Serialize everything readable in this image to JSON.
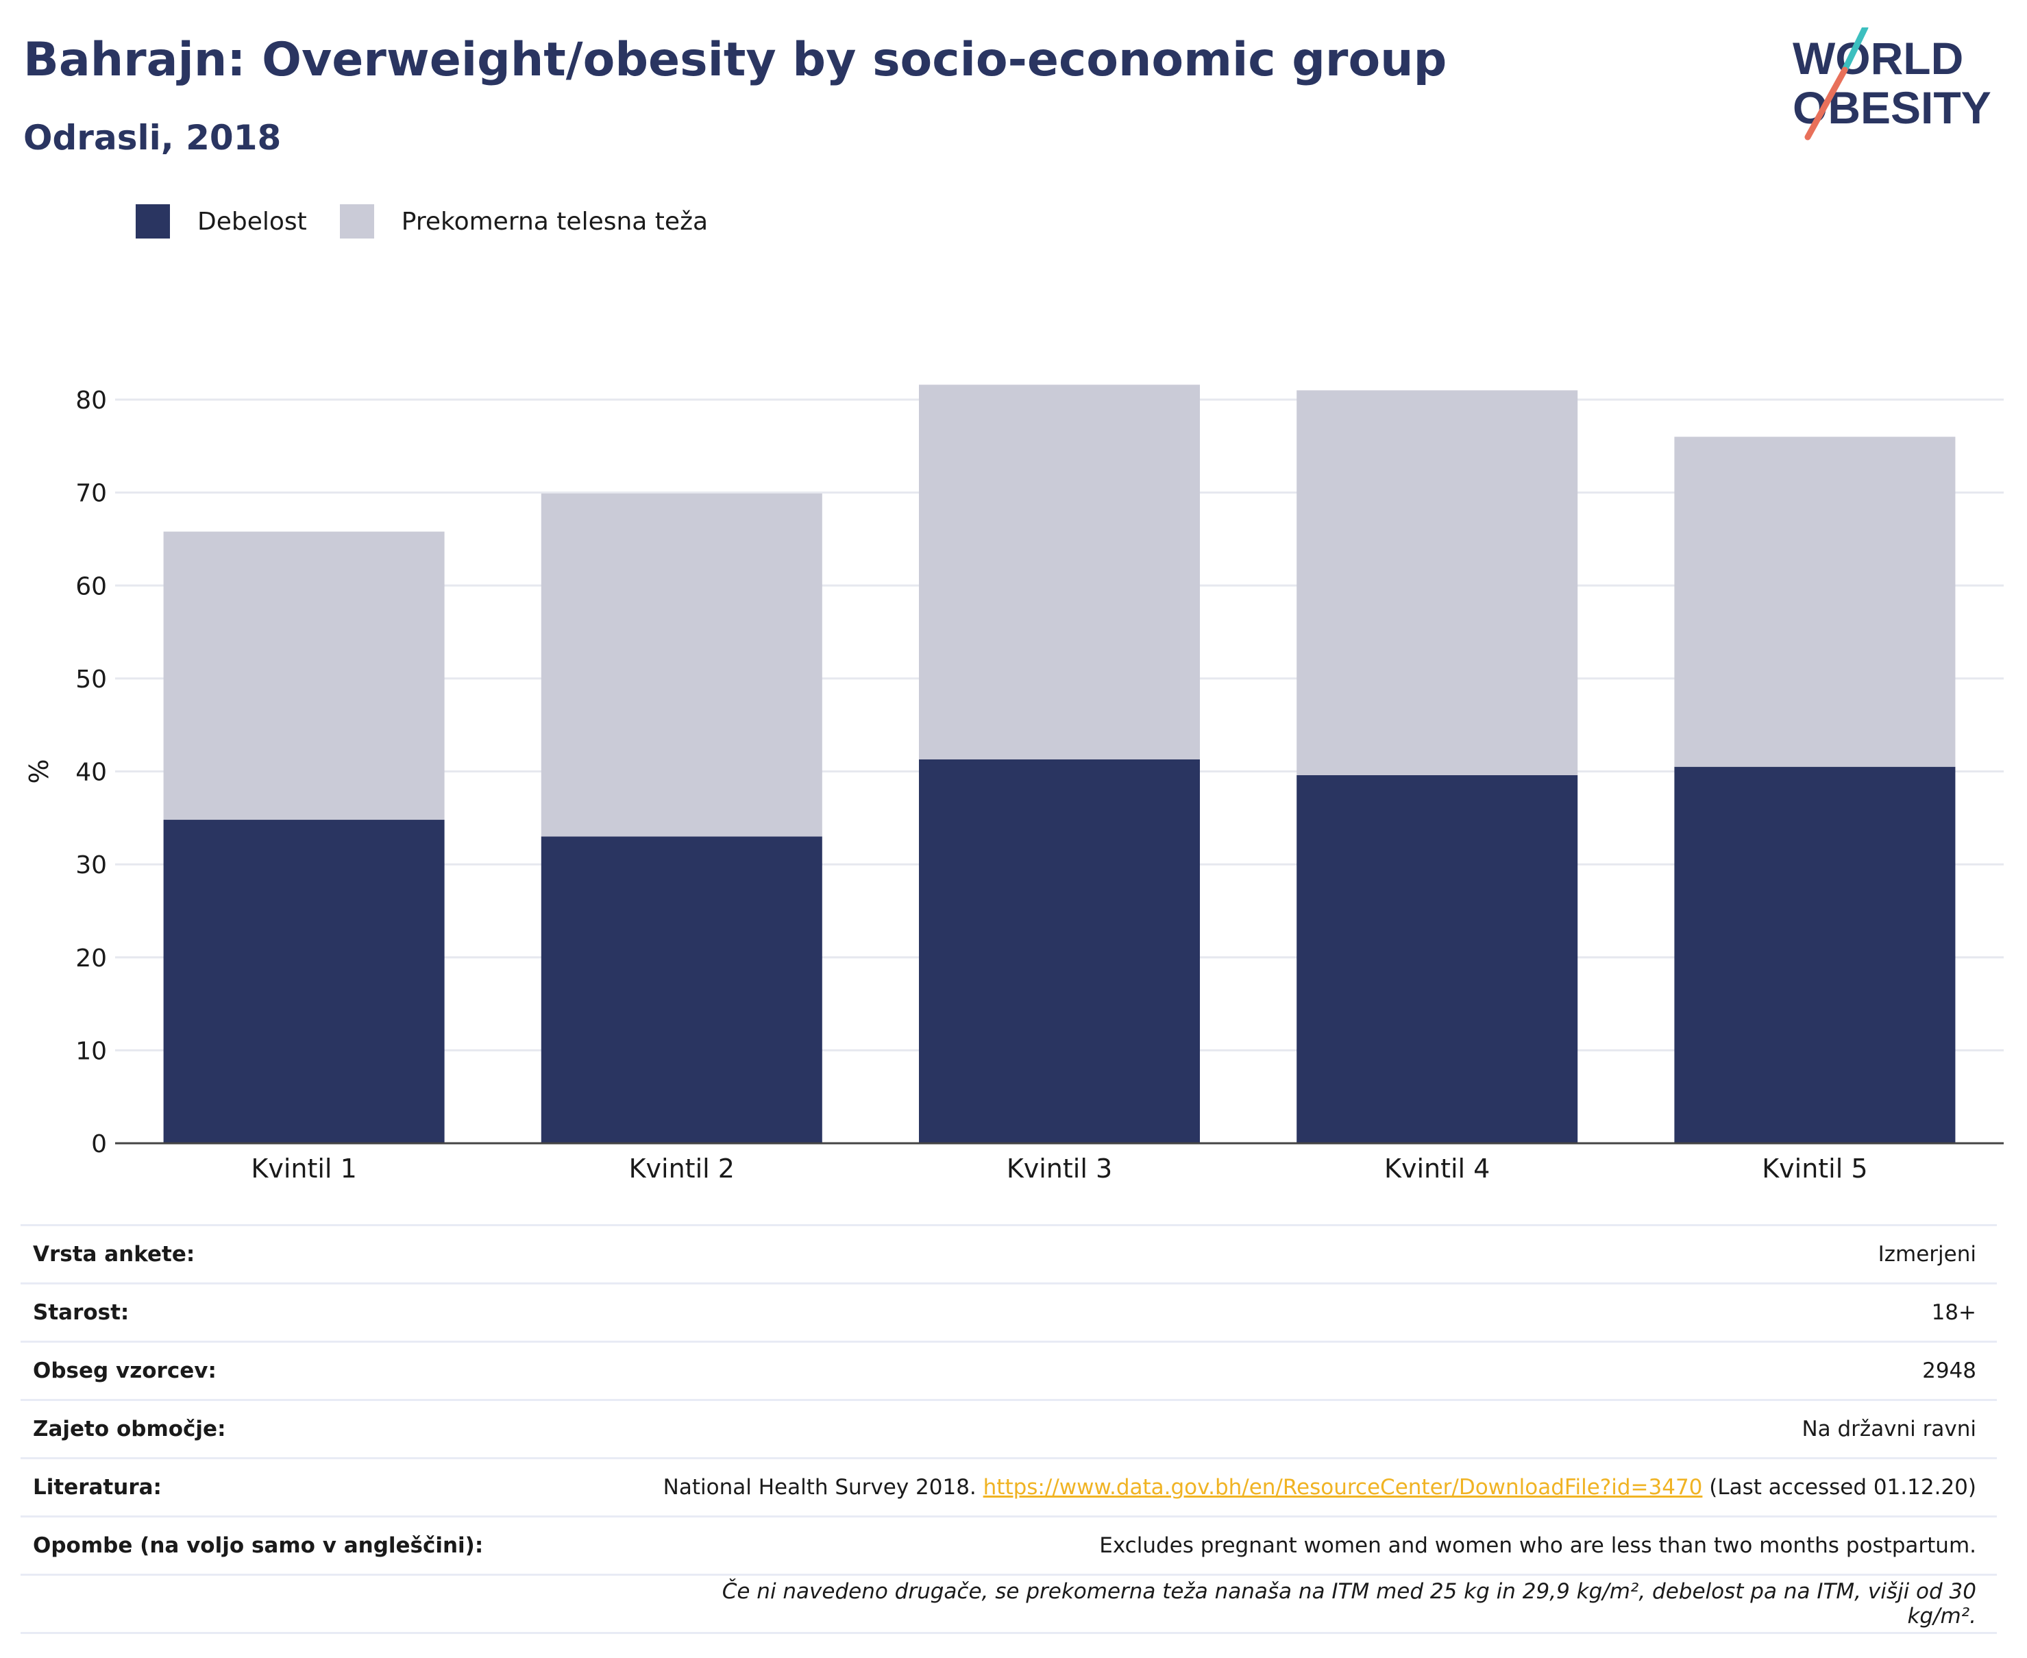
{
  "header": {
    "title": "Bahrajn: Overweight/obesity by socio-economic group",
    "subtitle": "Odrasli, 2018"
  },
  "logo": {
    "line1": "WORLD",
    "line2": "OBESITY"
  },
  "colors": {
    "obesity": "#2a3561",
    "overweight": "#cacbd7",
    "text": "#2a3561",
    "link": "#f0b323",
    "accent_teal": "#3cbfbf",
    "accent_red": "#e8705a"
  },
  "chart_data": {
    "type": "bar",
    "stacked": true,
    "categories": [
      "Kvintil 1",
      "Kvintil 2",
      "Kvintil 3",
      "Kvintil 4",
      "Kvintil 5"
    ],
    "series": [
      {
        "name": "Debelost",
        "values": [
          34.8,
          33.0,
          41.3,
          39.6,
          40.5
        ]
      },
      {
        "name": "Prekomerna telesna teža",
        "values": [
          31.0,
          36.9,
          40.3,
          41.4,
          35.5
        ]
      }
    ],
    "ylabel": "%",
    "xlabel": "",
    "ylim": [
      0,
      90
    ],
    "yticks": [
      0,
      10,
      20,
      30,
      40,
      50,
      60,
      70,
      80
    ],
    "grid": true,
    "legend": "top-left"
  },
  "meta": {
    "rows": [
      {
        "key": "Vrsta ankete:",
        "value": "Izmerjeni"
      },
      {
        "key": "Starost:",
        "value": "18+"
      },
      {
        "key": "Obseg vzorcev:",
        "value": "2948"
      },
      {
        "key": "Zajeto območje:",
        "value": "Na državni ravni"
      }
    ],
    "literature": {
      "key": "Literatura:",
      "prefix": "National Health Survey 2018. ",
      "link": "https://www.data.gov.bh/en/ResourceCenter/DownloadFile?id=3470",
      "suffix": " (Last accessed 01.12.20)"
    },
    "notes": {
      "key": "Opombe (na voljo samo v angleščini):",
      "value": "Excludes pregnant women and women who are less than two months postpartum."
    },
    "footnote": "Če ni navedeno drugače, se prekomerna teža nanaša na ITM med 25 kg in 29,9 kg/m², debelost pa na ITM, višji od 30 kg/m²."
  }
}
